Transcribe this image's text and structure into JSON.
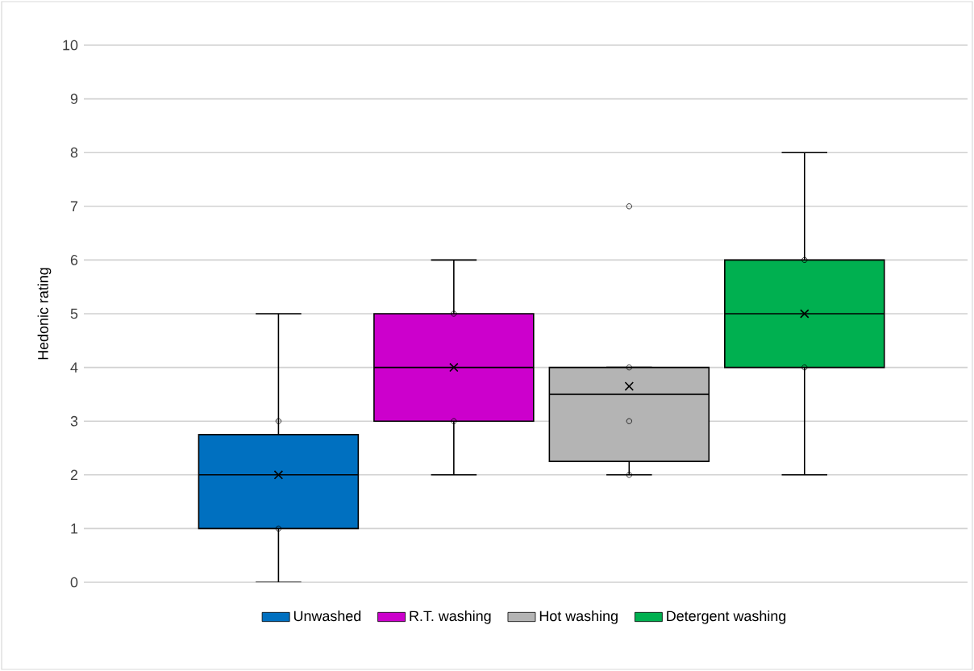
{
  "chart_data": {
    "type": "box",
    "ylabel": "Hedonic rating",
    "categories": [
      null
    ],
    "ylim": [
      0,
      10
    ],
    "yticks": [
      0,
      1,
      2,
      3,
      4,
      5,
      6,
      7,
      8,
      9,
      10
    ],
    "grid": "y",
    "legend": "bottom",
    "marker": "cross",
    "series": [
      {
        "name": "Unwashed",
        "color": "#0070c0",
        "boxes": [
          {
            "low": 0,
            "q1": 1,
            "median": 2,
            "q3": 2.75,
            "high": 5,
            "mean": 2,
            "outliers": [
              1,
              3
            ]
          }
        ]
      },
      {
        "name": "R.T. washing",
        "color": "#cc00cc",
        "boxes": [
          {
            "low": 2,
            "q1": 3,
            "median": 4,
            "q3": 5,
            "high": 6,
            "mean": 4,
            "outliers": [
              3,
              5
            ]
          }
        ]
      },
      {
        "name": "Hot washing",
        "color": "#b4b4b4",
        "boxes": [
          {
            "low": 2,
            "q1": 2.25,
            "median": 3.5,
            "q3": 4,
            "high": 4,
            "mean": 3.65,
            "outliers": [
              2,
              3,
              4,
              7
            ]
          }
        ]
      },
      {
        "name": "Detergent washing",
        "color": "#00b050",
        "boxes": [
          {
            "low": 2,
            "q1": 4,
            "median": 5,
            "q3": 6,
            "high": 8,
            "mean": 5,
            "outliers": [
              4,
              6
            ]
          }
        ]
      }
    ]
  }
}
